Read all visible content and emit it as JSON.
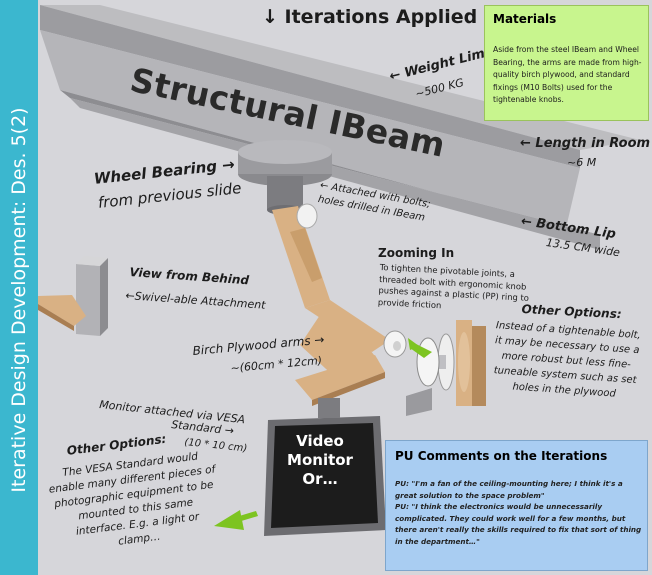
{
  "sidebar": {
    "title": "Iterative Design Development: Des. 5(2)"
  },
  "header": {
    "iterations": "↓ Iterations Applied"
  },
  "ibeam": {
    "label": "Structural IBeam"
  },
  "materials": {
    "title": "Materials",
    "text": "Aside from the steel IBeam and Wheel Bearing, the arms are made from high-quality birch plywood, and standard fixings (M10 Bolts) used for the tightenable knobs."
  },
  "annotations": {
    "weight_limit_title": "← Weight Limit",
    "weight_limit_value": "~500 KG",
    "length_title": "← Length in Room",
    "length_value": "~6 M",
    "bottom_lip_title": "← Bottom Lip",
    "bottom_lip_value": "13.5 CM wide",
    "wheel_bearing_title": "Wheel Bearing →",
    "wheel_bearing_sub": "from previous slide",
    "attached_line1": "← Attached with bolts;",
    "attached_line2": "holes drilled in IBeam",
    "view_behind_title": "View from Behind",
    "view_behind_sub": "←Swivel-able Attachment",
    "zooming_title": "Zooming In",
    "zooming_text": "To tighten the pivotable joints, a threaded bolt with ergonomic knob pushes against a plastic (PP) ring to provide friction",
    "birch_title": "Birch Plywood arms →",
    "birch_value": "~(60cm * 12cm)",
    "other_options_right_title": "Other Options:",
    "other_options_right_text": "Instead of a tightenable bolt, it may be necessary to use a more robust but less fine-tuneable system such as set holes in the plywood",
    "vesa_line1": "Monitor attached via VESA",
    "vesa_line2": "Standard →",
    "vesa_line3": "(10 * 10 cm)",
    "other_options_left_title": "Other Options:",
    "other_options_left_text": "The VESA Standard would enable many different pieces of photographic equipment to be mounted to this same interface. E.g. a light or clamp…"
  },
  "monitor": {
    "line1": "Video",
    "line2": "Monitor",
    "line3": "Or…"
  },
  "comments": {
    "title": "PU Comments on the Iterations",
    "quote1": "PU: \"I'm a fan of the ceiling-mounting here; I think it's a great solution to the space problem\"",
    "quote2": "PU: \"I think the electronics would be unnecessarily complicated. They could work well for a few months, but there aren't really the skills required to fix that sort of thing in the department…\""
  },
  "colors": {
    "sidebar": "#3bb7cf",
    "materials_bg": "#c8f58e",
    "comments_bg": "#a9cdf2",
    "plywood": "#d9b184",
    "arrow_green": "#7dc421"
  }
}
